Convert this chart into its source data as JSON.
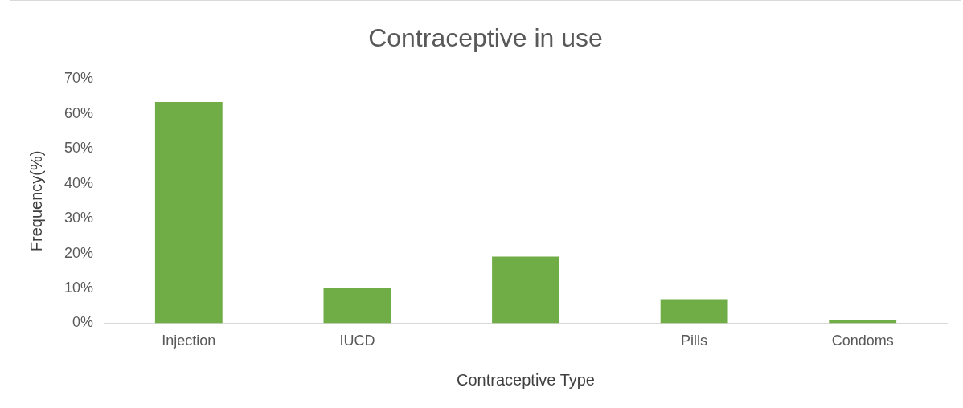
{
  "chart_data": {
    "type": "bar",
    "title": "Contraceptive in use",
    "xlabel": "Contraceptive Type",
    "ylabel": "Frequency(%)",
    "categories": [
      "Injection",
      "IUCD",
      null,
      "Pills",
      "Condoms"
    ],
    "values": [
      63.4,
      10,
      19.1,
      6.9,
      1
    ],
    "color": "#70ad47",
    "ylim": [
      0,
      70
    ],
    "yticks": [
      {
        "value": 0,
        "label": "0%"
      },
      {
        "value": 10,
        "label": "10%"
      },
      {
        "value": 20,
        "label": "20%"
      },
      {
        "value": 30,
        "label": "30%"
      },
      {
        "value": 40,
        "label": "40%"
      },
      {
        "value": 50,
        "label": "50%"
      },
      {
        "value": 60,
        "label": "60%"
      },
      {
        "value": 70,
        "label": "70%"
      }
    ],
    "grid": false,
    "legend": false
  }
}
